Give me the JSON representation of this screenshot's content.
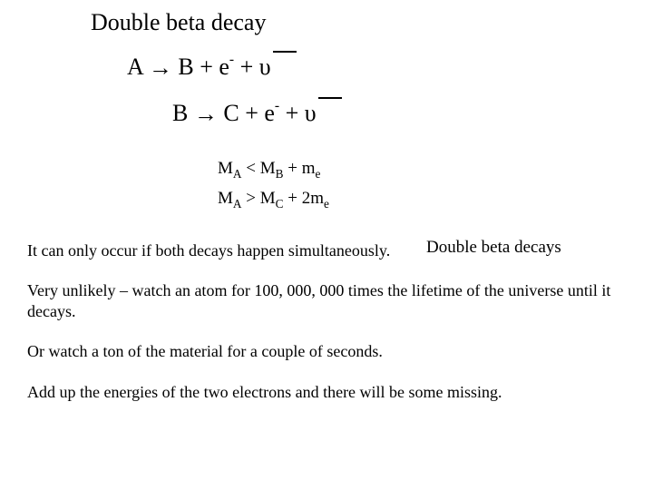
{
  "title": "Double beta decay",
  "eq1": {
    "lhs": "A",
    "arrow": "→",
    "rhs_particle": "B",
    "plus1": " + e",
    "sup1": "-",
    "plus2": " + ",
    "nu": "υ"
  },
  "eq2": {
    "lhs": "B",
    "arrow": "→",
    "rhs_particle": "C",
    "plus1": " + e",
    "sup1": "-",
    "plus2": " + ",
    "nu": "υ"
  },
  "mass1": {
    "M": "M",
    "A": "A",
    "lt": " < M",
    "B": "B",
    "plus": " + m",
    "e": "e"
  },
  "mass2": {
    "M": "M",
    "A": "A",
    "gt": " > M",
    "C": "C",
    "plus": " + 2m",
    "e": "e"
  },
  "annotation": "Double beta decays",
  "para1": "It can only occur if both decays happen simultaneously.",
  "para2": "Very unlikely – watch an atom for 100, 000, 000 times the lifetime of the universe until it decays.",
  "para3": "Or watch a ton of the material for a couple of seconds.",
  "para4": "Add up the energies of the two electrons and there will be some missing."
}
